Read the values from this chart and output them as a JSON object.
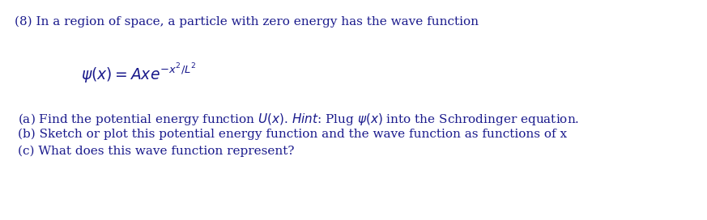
{
  "background_color": "#ffffff",
  "text_color": "#1a1a8c",
  "figsize": [
    8.73,
    2.72
  ],
  "dpi": 100,
  "line1": "(8) In a region of space, a particle with zero energy has the wave function",
  "equation": "$\\psi(x) = Axe^{-x^2/L^2}$",
  "line_a": "(a) Find the potential energy function $U(x)$. $\\it{Hint}$: Plug $\\psi(x)$ into the Schrodinger equation.",
  "line_b": "(b) Sketch or plot this potential energy function and the wave function as functions of x",
  "line_c": "(c) What does this wave function represent?",
  "fontsize_main": 11.0,
  "fontsize_eq": 13.5
}
